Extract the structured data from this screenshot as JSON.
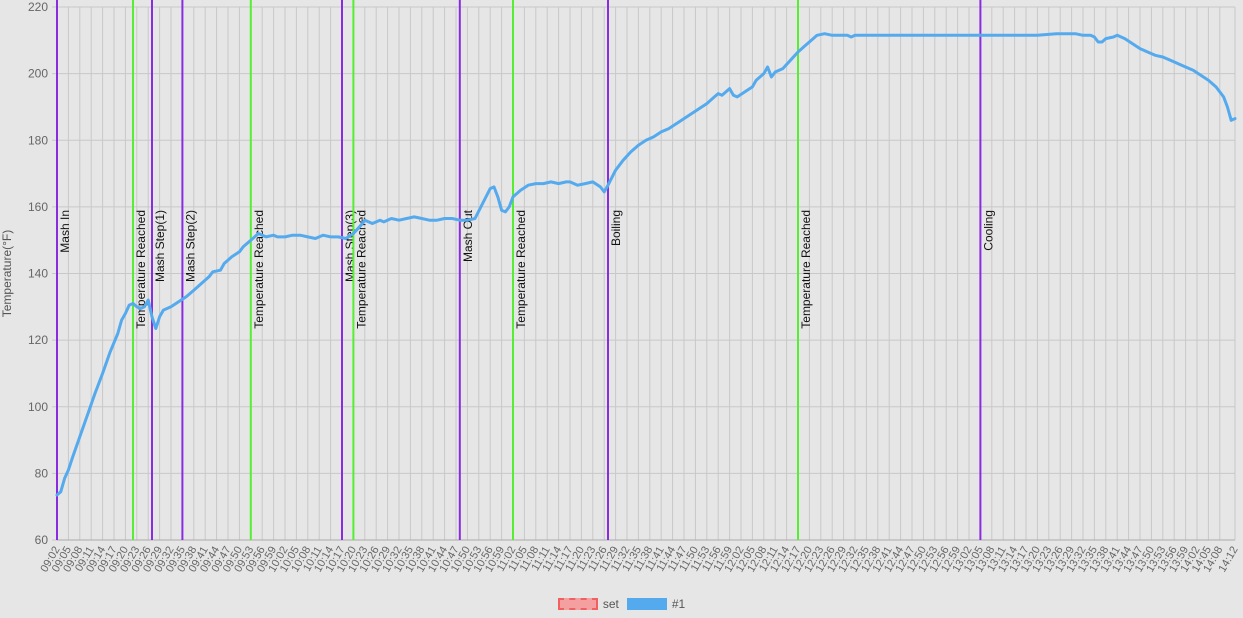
{
  "chart_data": {
    "type": "line",
    "ylabel": "Temperature(°F)",
    "ylim": [
      60,
      220
    ],
    "yticks": [
      60,
      80,
      100,
      120,
      140,
      160,
      180,
      200,
      220
    ],
    "xlim": [
      "09:02",
      "14:12"
    ],
    "xtick_labels": [
      "09:02",
      "09:05",
      "09:08",
      "09:11",
      "09:14",
      "09:17",
      "09:20",
      "09:23",
      "09:26",
      "09:29",
      "09:32",
      "09:35",
      "09:38",
      "09:41",
      "09:44",
      "09:47",
      "09:50",
      "09:53",
      "09:56",
      "09:59",
      "10:02",
      "10:05",
      "10:08",
      "10:11",
      "10:14",
      "10:17",
      "10:20",
      "10:23",
      "10:26",
      "10:29",
      "10:32",
      "10:35",
      "10:38",
      "10:41",
      "10:44",
      "10:47",
      "10:50",
      "10:53",
      "10:56",
      "10:59",
      "11:02",
      "11:05",
      "11:08",
      "11:11",
      "11:14",
      "11:17",
      "11:20",
      "11:23",
      "11:26",
      "11:29",
      "11:32",
      "11:35",
      "11:38",
      "11:41",
      "11:44",
      "11:47",
      "11:50",
      "11:53",
      "11:56",
      "11:59",
      "12:02",
      "12:05",
      "12:08",
      "12:11",
      "12:14",
      "12:17",
      "12:20",
      "12:23",
      "12:26",
      "12:29",
      "12:32",
      "12:35",
      "12:38",
      "12:41",
      "12:44",
      "12:47",
      "12:50",
      "12:53",
      "12:56",
      "12:59",
      "13:02",
      "13:05",
      "13:08",
      "13:11",
      "13:14",
      "13:17",
      "13:20",
      "13:23",
      "13:26",
      "13:29",
      "13:32",
      "13:35",
      "13:38",
      "13:41",
      "13:44",
      "13:47",
      "13:50",
      "13:53",
      "13:56",
      "13:59",
      "14:02",
      "14:05",
      "14:08",
      "14:12"
    ],
    "grid": true,
    "legend_position": "bottom",
    "series": [
      {
        "name": "set",
        "color": "#f08080",
        "values": []
      },
      {
        "name": "#1",
        "color": "#55aaee",
        "points": [
          [
            "09:02",
            73.5
          ],
          [
            "09:03",
            74.5
          ],
          [
            "09:04",
            78.5
          ],
          [
            "09:05",
            81
          ],
          [
            "09:06",
            84.5
          ],
          [
            "09:08",
            91
          ],
          [
            "09:10",
            97.5
          ],
          [
            "09:12",
            104
          ],
          [
            "09:14",
            110
          ],
          [
            "09:16",
            116.5
          ],
          [
            "09:18",
            122
          ],
          [
            "09:19",
            126
          ],
          [
            "09:20",
            128
          ],
          [
            "09:21",
            130.5
          ],
          [
            "09:22",
            131
          ],
          [
            "09:23",
            130
          ],
          [
            "09:24",
            129.5
          ],
          [
            "09:25",
            130
          ],
          [
            "09:26",
            132
          ],
          [
            "09:27",
            127
          ],
          [
            "09:28",
            123.5
          ],
          [
            "09:29",
            127
          ],
          [
            "09:30",
            129
          ],
          [
            "09:32",
            130
          ],
          [
            "09:34",
            131.5
          ],
          [
            "09:36",
            133
          ],
          [
            "09:38",
            135
          ],
          [
            "09:40",
            137
          ],
          [
            "09:42",
            139
          ],
          [
            "09:43",
            140.5
          ],
          [
            "09:45",
            141
          ],
          [
            "09:46",
            143
          ],
          [
            "09:48",
            145
          ],
          [
            "09:50",
            146.5
          ],
          [
            "09:51",
            148
          ],
          [
            "09:53",
            150
          ],
          [
            "09:54",
            151
          ],
          [
            "09:55",
            152
          ],
          [
            "09:57",
            151
          ],
          [
            "09:59",
            151.5
          ],
          [
            "10:00",
            151
          ],
          [
            "10:02",
            151
          ],
          [
            "10:04",
            151.5
          ],
          [
            "10:06",
            151.5
          ],
          [
            "10:08",
            151
          ],
          [
            "10:10",
            150.5
          ],
          [
            "10:12",
            151.5
          ],
          [
            "10:14",
            151
          ],
          [
            "10:16",
            151
          ],
          [
            "10:18",
            150.5
          ],
          [
            "10:20",
            152
          ],
          [
            "10:22",
            154.5
          ],
          [
            "10:23",
            156
          ],
          [
            "10:25",
            155
          ],
          [
            "10:27",
            156
          ],
          [
            "10:28",
            155.5
          ],
          [
            "10:30",
            156.5
          ],
          [
            "10:32",
            156
          ],
          [
            "10:34",
            156.5
          ],
          [
            "10:36",
            157
          ],
          [
            "10:38",
            156.5
          ],
          [
            "10:40",
            156
          ],
          [
            "10:42",
            156
          ],
          [
            "10:44",
            156.5
          ],
          [
            "10:46",
            156.5
          ],
          [
            "10:48",
            156
          ],
          [
            "10:50",
            156
          ],
          [
            "10:52",
            156.5
          ],
          [
            "10:54",
            161
          ],
          [
            "10:56",
            165.5
          ],
          [
            "10:57",
            166
          ],
          [
            "10:58",
            163
          ],
          [
            "10:59",
            159
          ],
          [
            "11:00",
            158.5
          ],
          [
            "11:01",
            160
          ],
          [
            "11:02",
            163
          ],
          [
            "11:04",
            165
          ],
          [
            "11:06",
            166.5
          ],
          [
            "11:08",
            167
          ],
          [
            "11:10",
            167
          ],
          [
            "11:12",
            167.5
          ],
          [
            "11:14",
            167
          ],
          [
            "11:16",
            167.5
          ],
          [
            "11:17",
            167.5
          ],
          [
            "11:19",
            166.5
          ],
          [
            "11:21",
            167
          ],
          [
            "11:23",
            167.5
          ],
          [
            "11:25",
            166
          ],
          [
            "11:26",
            164.5
          ],
          [
            "11:27",
            166.5
          ],
          [
            "11:29",
            171
          ],
          [
            "11:31",
            174
          ],
          [
            "11:33",
            176.5
          ],
          [
            "11:35",
            178.5
          ],
          [
            "11:37",
            180
          ],
          [
            "11:39",
            181
          ],
          [
            "11:41",
            182.5
          ],
          [
            "11:43",
            183.5
          ],
          [
            "11:45",
            185
          ],
          [
            "11:47",
            186.5
          ],
          [
            "11:49",
            188
          ],
          [
            "11:51",
            189.5
          ],
          [
            "11:53",
            191
          ],
          [
            "11:55",
            193
          ],
          [
            "11:56",
            194
          ],
          [
            "11:57",
            193.5
          ],
          [
            "11:59",
            195.5
          ],
          [
            "12:00",
            193.5
          ],
          [
            "12:01",
            193
          ],
          [
            "12:03",
            194.5
          ],
          [
            "12:05",
            196
          ],
          [
            "12:06",
            198
          ],
          [
            "12:08",
            200
          ],
          [
            "12:09",
            202
          ],
          [
            "12:10",
            199
          ],
          [
            "12:11",
            200.5
          ],
          [
            "12:13",
            201.5
          ],
          [
            "12:15",
            204
          ],
          [
            "12:17",
            206.5
          ],
          [
            "12:19",
            208.5
          ],
          [
            "12:21",
            210.5
          ],
          [
            "12:22",
            211.5
          ],
          [
            "12:24",
            212
          ],
          [
            "12:26",
            211.5
          ],
          [
            "12:28",
            211.5
          ],
          [
            "12:30",
            211.5
          ],
          [
            "12:31",
            211
          ],
          [
            "12:32",
            211.5
          ],
          [
            "12:35",
            211.5
          ],
          [
            "12:40",
            211.5
          ],
          [
            "12:45",
            211.5
          ],
          [
            "12:50",
            211.5
          ],
          [
            "12:55",
            211.5
          ],
          [
            "13:00",
            211.5
          ],
          [
            "13:05",
            211.5
          ],
          [
            "13:10",
            211.5
          ],
          [
            "13:15",
            211.5
          ],
          [
            "13:20",
            211.5
          ],
          [
            "13:25",
            212
          ],
          [
            "13:30",
            212
          ],
          [
            "13:32",
            211.5
          ],
          [
            "13:34",
            211.5
          ],
          [
            "13:35",
            211
          ],
          [
            "13:36",
            209.5
          ],
          [
            "13:37",
            209.5
          ],
          [
            "13:38",
            210.5
          ],
          [
            "13:40",
            211
          ],
          [
            "13:41",
            211.5
          ],
          [
            "13:43",
            210.5
          ],
          [
            "13:45",
            209
          ],
          [
            "13:47",
            207.5
          ],
          [
            "13:49",
            206.5
          ],
          [
            "13:51",
            205.5
          ],
          [
            "13:53",
            205
          ],
          [
            "13:55",
            204
          ],
          [
            "13:57",
            203
          ],
          [
            "13:59",
            202
          ],
          [
            "14:01",
            201
          ],
          [
            "14:03",
            199.5
          ],
          [
            "14:05",
            198
          ],
          [
            "14:07",
            196
          ],
          [
            "14:09",
            193
          ],
          [
            "14:10",
            190
          ],
          [
            "14:11",
            186
          ],
          [
            "14:12",
            186.5
          ]
        ]
      }
    ],
    "events": [
      {
        "time": "09:02",
        "label": "Mash In",
        "color": "#8a2be2"
      },
      {
        "time": "09:22",
        "label": "Temperature Reached",
        "color": "#55ee33"
      },
      {
        "time": "09:27",
        "label": "Mash Step(1)",
        "color": "#8a2be2"
      },
      {
        "time": "09:35",
        "label": "Mash Step(2)",
        "color": "#8a2be2"
      },
      {
        "time": "09:53",
        "label": "Temperature Reached",
        "color": "#55ee33"
      },
      {
        "time": "10:17",
        "label": "Mash Step(3)",
        "color": "#8a2be2"
      },
      {
        "time": "10:20",
        "label": "Temperature Reached",
        "color": "#55ee33"
      },
      {
        "time": "10:48",
        "label": "Mash Out",
        "color": "#8a2be2"
      },
      {
        "time": "11:02",
        "label": "Temperature Reached",
        "color": "#55ee33"
      },
      {
        "time": "11:27",
        "label": "Boiling",
        "color": "#8a2be2"
      },
      {
        "time": "12:17",
        "label": "Temperature Reached",
        "color": "#55ee33"
      },
      {
        "time": "13:05",
        "label": "Cooling",
        "color": "#8a2be2"
      }
    ]
  },
  "legend": {
    "items": [
      {
        "label": "set",
        "fill": "#f5a0a0",
        "border": "#f06060",
        "dashed": true
      },
      {
        "label": "#1",
        "fill": "#55aaee",
        "border": "#55aaee",
        "dashed": false
      }
    ]
  }
}
